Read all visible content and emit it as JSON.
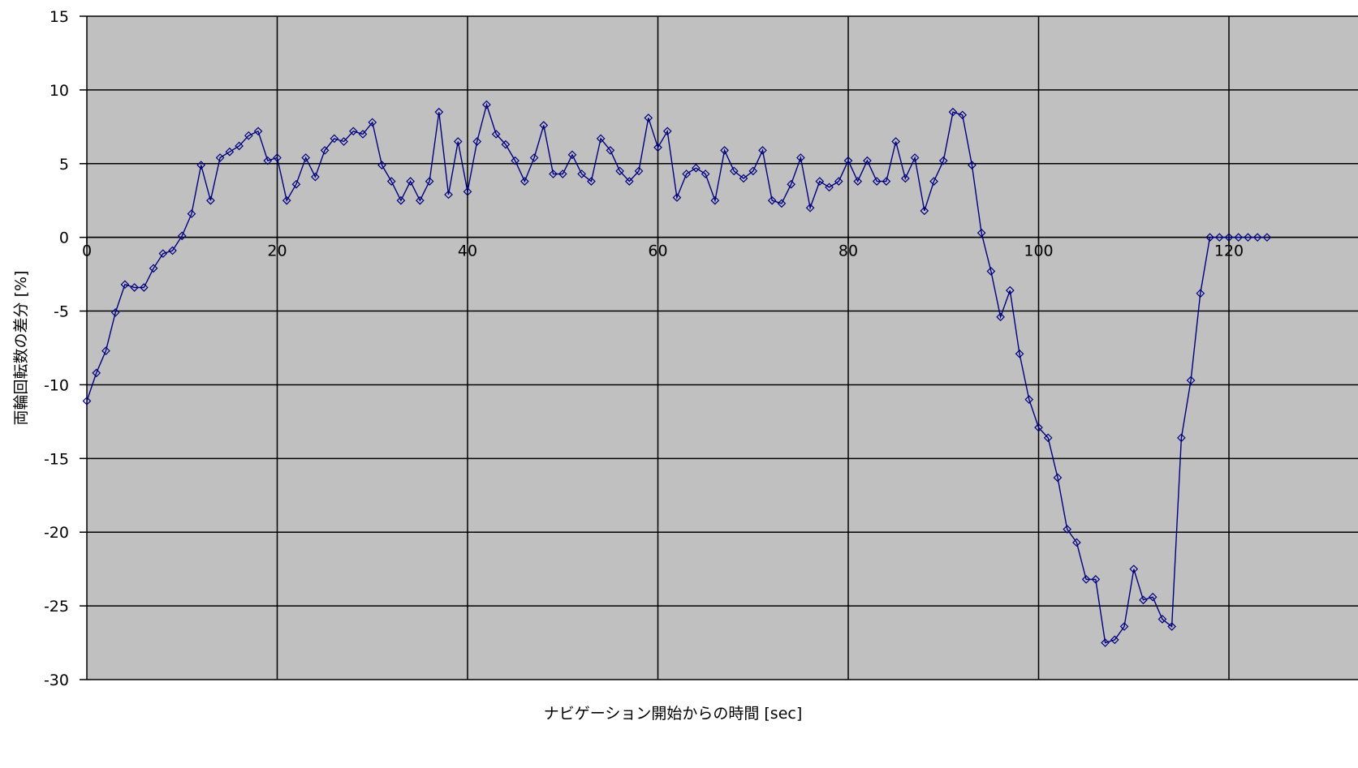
{
  "chart_data": {
    "type": "line",
    "title": "",
    "xlabel": "ナビゲーション開始からの時間 [sec]",
    "ylabel": "両輪回転数の差分 [%]",
    "xlim": [
      0,
      124
    ],
    "ylim": [
      -30,
      15
    ],
    "x_ticks": [
      0,
      20,
      40,
      60,
      80,
      100,
      120
    ],
    "y_ticks": [
      15,
      10,
      5,
      0,
      -5,
      -10,
      -15,
      -20,
      -25,
      -30
    ],
    "x_tick_labels": [
      "0",
      "20",
      "40",
      "60",
      "80",
      "100",
      "120"
    ],
    "y_tick_labels": [
      "15",
      "10",
      "5",
      "0",
      "-5",
      "-10",
      "-15",
      "-20",
      "-25",
      "-30"
    ],
    "grid": true,
    "legend": "none",
    "x_axis_position": "y=0",
    "colors": {
      "plot_background": "#c0c0c0",
      "series": "#000080",
      "grid": "#000000"
    },
    "series": [
      {
        "marker": "diamond",
        "x": [
          0,
          1,
          2,
          3,
          4,
          5,
          6,
          7,
          8,
          9,
          10,
          11,
          12,
          13,
          14,
          15,
          16,
          17,
          18,
          19,
          20,
          21,
          22,
          23,
          24,
          25,
          26,
          27,
          28,
          29,
          30,
          31,
          32,
          33,
          34,
          35,
          36,
          37,
          38,
          39,
          40,
          41,
          42,
          43,
          44,
          45,
          46,
          47,
          48,
          49,
          50,
          51,
          52,
          53,
          54,
          55,
          56,
          57,
          58,
          59,
          60,
          61,
          62,
          63,
          64,
          65,
          66,
          67,
          68,
          69,
          70,
          71,
          72,
          73,
          74,
          75,
          76,
          77,
          78,
          79,
          80,
          81,
          82,
          83,
          84,
          85,
          86,
          87,
          88,
          89,
          90,
          91,
          92,
          93,
          94,
          95,
          96,
          97,
          98,
          99,
          100,
          101,
          102,
          103,
          104,
          105,
          106,
          107,
          108,
          109,
          110,
          111,
          112,
          113,
          114,
          115,
          116,
          117,
          118,
          119,
          120,
          121,
          122,
          123,
          124
        ],
        "values": [
          -11.1,
          -9.2,
          -7.7,
          -5.1,
          -3.2,
          -3.4,
          -3.4,
          -2.1,
          -1.1,
          -0.9,
          0.1,
          1.6,
          4.9,
          2.5,
          5.4,
          5.8,
          6.2,
          6.9,
          7.2,
          5.2,
          5.4,
          2.5,
          3.6,
          5.4,
          4.1,
          5.9,
          6.7,
          6.5,
          7.2,
          7.0,
          7.8,
          4.9,
          3.8,
          2.5,
          3.8,
          2.5,
          3.8,
          8.5,
          2.9,
          6.5,
          3.1,
          6.5,
          9.0,
          7.0,
          6.3,
          5.2,
          3.8,
          5.4,
          7.6,
          4.3,
          4.3,
          5.6,
          4.3,
          3.8,
          6.7,
          5.9,
          4.5,
          3.8,
          4.5,
          8.1,
          6.1,
          7.2,
          2.7,
          4.3,
          4.7,
          4.3,
          2.5,
          5.9,
          4.5,
          4.0,
          4.5,
          5.9,
          2.5,
          2.3,
          3.6,
          5.4,
          2.0,
          3.8,
          3.4,
          3.8,
          5.2,
          3.8,
          5.2,
          3.8,
          3.8,
          6.5,
          4.0,
          5.4,
          1.8,
          3.8,
          5.2,
          8.5,
          8.3,
          4.9,
          0.3,
          -2.3,
          -5.4,
          -3.6,
          -7.9,
          -11.0,
          -12.9,
          -13.6,
          -16.3,
          -19.8,
          -20.7,
          -23.2,
          -23.2,
          -27.5,
          -27.3,
          -26.4,
          -22.5,
          -24.6,
          -24.4,
          -25.9,
          -26.4,
          -13.6,
          -9.7,
          -3.8,
          0.0,
          0.0,
          0.0,
          0.0,
          0.0,
          0.0,
          0.0
        ]
      }
    ]
  }
}
